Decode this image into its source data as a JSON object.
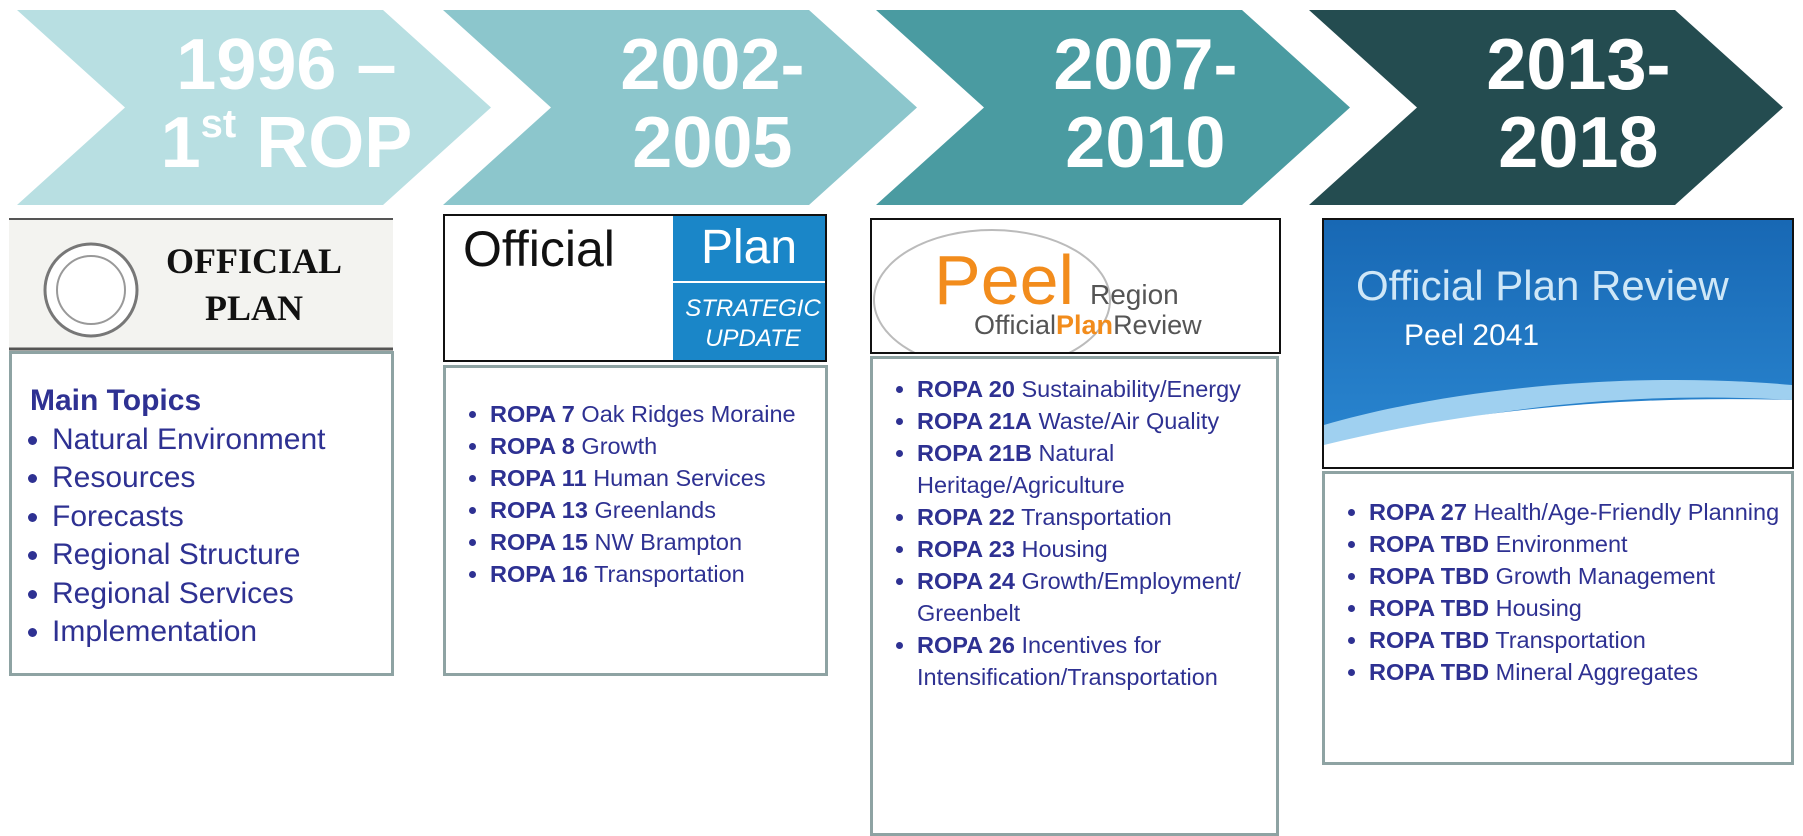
{
  "columns": [
    {
      "heading": [
        [
          {
            "text": "1996 –"
          }
        ],
        [
          {
            "text": "1"
          },
          {
            "text": "st",
            "sup": true
          },
          {
            "text": " ROP"
          }
        ]
      ],
      "color": "#b8dfe2",
      "logo": {
        "line1": "OFFICIAL",
        "line2": "PLAN"
      },
      "list_title": "Main Topics",
      "items": [
        {
          "text": "Natural Environment"
        },
        {
          "text": "Resources"
        },
        {
          "text": "Forecasts"
        },
        {
          "text": "Regional Structure"
        },
        {
          "text": "Regional Services"
        },
        {
          "text": "Implementation"
        }
      ]
    },
    {
      "heading": [
        [
          {
            "text": "2002-"
          }
        ],
        [
          {
            "text": "2005"
          }
        ]
      ],
      "color": "#8cc6cc",
      "logo": {
        "word": "Official",
        "plan": "Plan",
        "line1": "STRATEGIC",
        "line2": "UPDATE"
      },
      "items": [
        {
          "code": "ROPA 7",
          "text": "Oak Ridges Moraine"
        },
        {
          "code": "ROPA 8",
          "text": "Growth"
        },
        {
          "code": "ROPA 11",
          "text": "Human Services"
        },
        {
          "code": "ROPA 13",
          "text": "Greenlands"
        },
        {
          "code": "ROPA 15",
          "text": "NW Brampton"
        },
        {
          "code": "ROPA 16",
          "text": "Transportation"
        }
      ]
    },
    {
      "heading": [
        [
          {
            "text": "2007-"
          }
        ],
        [
          {
            "text": "2010"
          }
        ]
      ],
      "color": "#4a9ba1",
      "logo": {
        "peel": "Peel",
        "region": "Region",
        "official": "Official",
        "plan": "Plan",
        "review": "Review"
      },
      "items": [
        {
          "code": "ROPA 20",
          "text": "Sustainability/Energy"
        },
        {
          "code": "ROPA 21A",
          "text": "Waste/Air Quality"
        },
        {
          "code": "ROPA 21B",
          "text": "Natural Heritage/Agriculture"
        },
        {
          "code": "ROPA 22",
          "text": "Transportation"
        },
        {
          "code": "ROPA 23",
          "text": "Housing"
        },
        {
          "code": "ROPA 24",
          "text": "Growth/Employment/ Greenbelt"
        },
        {
          "code": "ROPA 26",
          "text": "Incentives for Intensification/Transportation"
        }
      ]
    },
    {
      "heading": [
        [
          {
            "text": "2013-"
          }
        ],
        [
          {
            "text": "2018"
          }
        ]
      ],
      "color": "#244c50",
      "logo": {
        "title": "Official Plan Review",
        "subtitle": "Peel 2041"
      },
      "items": [
        {
          "code": "ROPA 27",
          "text": "Health/Age-Friendly Planning"
        },
        {
          "code": "ROPA TBD",
          "text": "Environment"
        },
        {
          "code": "ROPA TBD",
          "text": "Growth Management"
        },
        {
          "code": "ROPA TBD",
          "text": "Housing"
        },
        {
          "code": "ROPA TBD",
          "text": "Transportation"
        },
        {
          "code": "ROPA TBD",
          "text": "Mineral Aggregates"
        }
      ]
    }
  ]
}
